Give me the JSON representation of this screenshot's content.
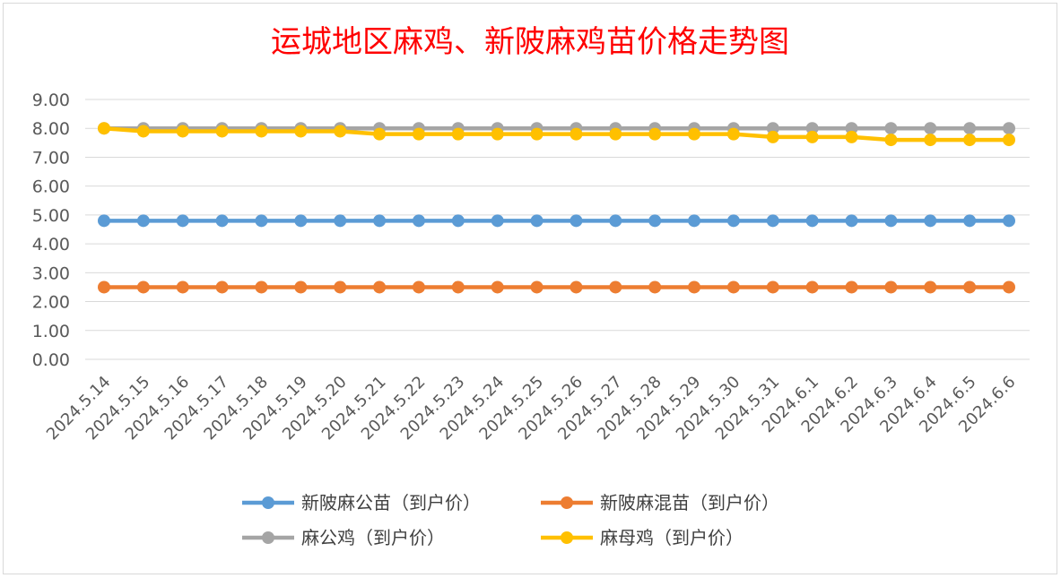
{
  "chart_data": {
    "type": "line",
    "title": "运城地区麻鸡、新陂麻鸡苗价格走势图",
    "xlabel": "",
    "ylabel": "",
    "ylim": [
      0,
      9
    ],
    "y_ticks": [
      "0.00",
      "1.00",
      "2.00",
      "3.00",
      "4.00",
      "5.00",
      "6.00",
      "7.00",
      "8.00",
      "9.00"
    ],
    "grid": true,
    "legend_position": "bottom",
    "categories": [
      "2024.5.14",
      "2024.5.15",
      "2024.5.16",
      "2024.5.17",
      "2024.5.18",
      "2024.5.19",
      "2024.5.20",
      "2024.5.21",
      "2024.5.22",
      "2024.5.23",
      "2024.5.24",
      "2024.5.25",
      "2024.5.26",
      "2024.5.27",
      "2024.5.28",
      "2024.5.29",
      "2024.5.30",
      "2024.5.31",
      "2024.6.1",
      "2024.6.2",
      "2024.6.3",
      "2024.6.4",
      "2024.6.5",
      "2024.6.6"
    ],
    "series": [
      {
        "name": "新陂麻公苗（到户价）",
        "color": "#5b9bd5",
        "values": [
          4.8,
          4.8,
          4.8,
          4.8,
          4.8,
          4.8,
          4.8,
          4.8,
          4.8,
          4.8,
          4.8,
          4.8,
          4.8,
          4.8,
          4.8,
          4.8,
          4.8,
          4.8,
          4.8,
          4.8,
          4.8,
          4.8,
          4.8,
          4.8
        ]
      },
      {
        "name": "新陂麻混苗（到户价）",
        "color": "#ed7d31",
        "values": [
          2.5,
          2.5,
          2.5,
          2.5,
          2.5,
          2.5,
          2.5,
          2.5,
          2.5,
          2.5,
          2.5,
          2.5,
          2.5,
          2.5,
          2.5,
          2.5,
          2.5,
          2.5,
          2.5,
          2.5,
          2.5,
          2.5,
          2.5,
          2.5
        ]
      },
      {
        "name": "麻公鸡（到户价）",
        "color": "#a5a5a5",
        "values": [
          8.0,
          8.0,
          8.0,
          8.0,
          8.0,
          8.0,
          8.0,
          8.0,
          8.0,
          8.0,
          8.0,
          8.0,
          8.0,
          8.0,
          8.0,
          8.0,
          8.0,
          8.0,
          8.0,
          8.0,
          8.0,
          8.0,
          8.0,
          8.0
        ]
      },
      {
        "name": "麻母鸡（到户价）",
        "color": "#ffc000",
        "values": [
          8.0,
          7.9,
          7.9,
          7.9,
          7.9,
          7.9,
          7.9,
          7.8,
          7.8,
          7.8,
          7.8,
          7.8,
          7.8,
          7.8,
          7.8,
          7.8,
          7.8,
          7.7,
          7.7,
          7.7,
          7.6,
          7.6,
          7.6,
          7.6
        ]
      }
    ]
  }
}
